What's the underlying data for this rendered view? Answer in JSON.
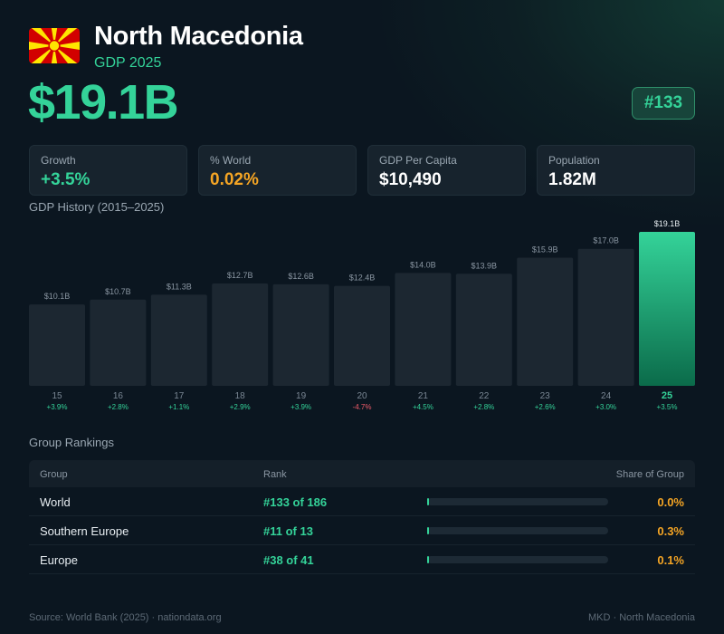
{
  "header": {
    "country": "North Macedonia",
    "subtitle": "GDP 2025",
    "gdp": "$19.1B",
    "rank": "#133",
    "flag_colors": {
      "field": "#d20000",
      "sun": "#ffe600"
    },
    "flag_icon": "north-macedonia-flag-icon"
  },
  "stats": [
    {
      "label": "Growth",
      "value": "+3.5%",
      "color": "#34d399"
    },
    {
      "label": "% World",
      "value": "0.02%",
      "color": "#f5a524"
    },
    {
      "label": "GDP Per Capita",
      "value": "$10,490",
      "color": "#ffffff"
    },
    {
      "label": "Population",
      "value": "1.82M",
      "color": "#ffffff"
    }
  ],
  "chart_title": "GDP History (2015–2025)",
  "chart_data": {
    "type": "bar",
    "categories": [
      "15",
      "16",
      "17",
      "18",
      "19",
      "20",
      "21",
      "22",
      "23",
      "24",
      "25"
    ],
    "values": [
      10.1,
      10.7,
      11.3,
      12.7,
      12.6,
      12.4,
      14.0,
      13.9,
      15.9,
      17.0,
      19.1
    ],
    "value_labels": [
      "$10.1B",
      "$10.7B",
      "$11.3B",
      "$12.7B",
      "$12.6B",
      "$12.4B",
      "$14.0B",
      "$13.9B",
      "$15.9B",
      "$17.0B",
      "$19.1B"
    ],
    "growth_labels": [
      "+3.9%",
      "+2.8%",
      "+1.1%",
      "+2.9%",
      "+3.9%",
      "-4.7%",
      "+4.5%",
      "+2.8%",
      "+2.6%",
      "+3.0%",
      "+3.5%"
    ],
    "highlight_index": 10,
    "colors": {
      "bar": "#1c2731",
      "highlight_top": "#34d399",
      "highlight_bottom": "#0b6b4a",
      "positive": "#34d399",
      "negative": "#f05c6a"
    }
  },
  "rankings": {
    "title": "Group Rankings",
    "headers": {
      "group": "Group",
      "rank": "Rank",
      "share": "Share of Group"
    },
    "rows": [
      {
        "group": "World",
        "rank": "#133 of 186",
        "share": "0.0%",
        "share_value": 0.0
      },
      {
        "group": "Southern Europe",
        "rank": "#11 of 13",
        "share": "0.3%",
        "share_value": 0.3
      },
      {
        "group": "Europe",
        "rank": "#38 of 41",
        "share": "0.1%",
        "share_value": 0.1
      }
    ]
  },
  "footer": {
    "source": "Source: World Bank (2025) · nationdata.org",
    "code": "MKD · North Macedonia"
  }
}
